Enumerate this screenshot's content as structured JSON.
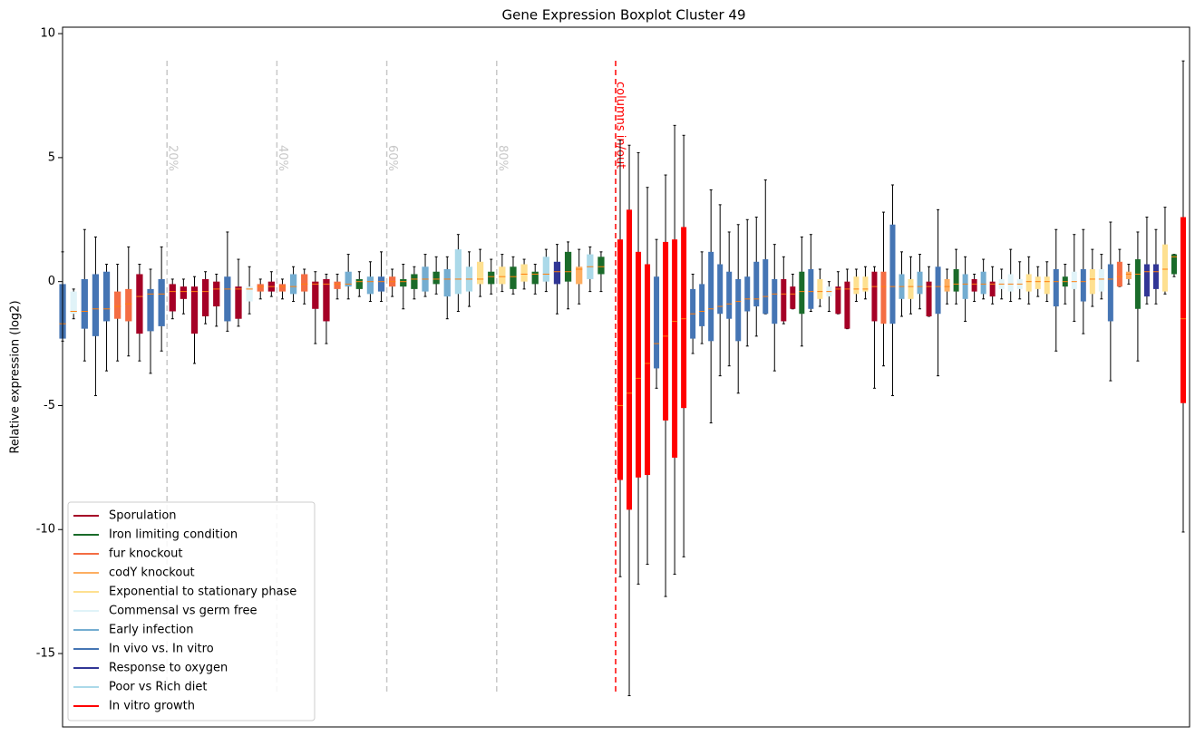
{
  "chart_data": {
    "type": "boxplot",
    "title": "Gene Expression Boxplot Cluster 49",
    "y_label": "Relative expression (log2)",
    "ylim": [
      -17.96,
      10.26
    ],
    "yticks": [
      10,
      5,
      0,
      -5,
      -10,
      -15
    ],
    "legend_position": "lower left",
    "median_color": "#ff7f0e",
    "guides": [
      {
        "value": 20,
        "label": "20%"
      },
      {
        "value": 40,
        "label": "40%"
      },
      {
        "value": 60,
        "label": "60%"
      },
      {
        "value": 80,
        "label": "80%"
      }
    ],
    "split_label": "columns in/out",
    "series": [
      {
        "name": "Sporulation",
        "color": "#a50026"
      },
      {
        "name": "Iron limiting condition",
        "color": "#1a6b2a"
      },
      {
        "name": "fur knockout",
        "color": "#f46d43"
      },
      {
        "name": "codY knockout",
        "color": "#fdae61"
      },
      {
        "name": "Exponential to stationary phase",
        "color": "#fee090"
      },
      {
        "name": "Commensal vs germ free",
        "color": "#e0f3f8"
      },
      {
        "name": "Early infection",
        "color": "#74add1"
      },
      {
        "name": "In vivo vs. In vitro",
        "color": "#4575b4"
      },
      {
        "name": "Response to oxygen",
        "color": "#313695"
      },
      {
        "name": "Poor vs Rich diet",
        "color": "#abd9e9"
      },
      {
        "name": "In vitro growth",
        "color": "#ff0000"
      }
    ],
    "boxes_in": [
      {
        "stats": [
          -2.4,
          -2.3,
          -1.7,
          -0.1,
          1.2
        ],
        "color": "#4575b4"
      },
      {
        "stats": [
          -1.5,
          -1.3,
          -1.2,
          -0.4,
          -0.3
        ],
        "color": "#e0f3f8"
      },
      {
        "stats": [
          -3.2,
          -1.9,
          -1.2,
          0.1,
          2.1
        ],
        "color": "#4575b4"
      },
      {
        "stats": [
          -4.6,
          -2.2,
          -1.1,
          0.3,
          1.8
        ],
        "color": "#4575b4"
      },
      {
        "stats": [
          -3.6,
          -1.6,
          -1.1,
          0.4,
          0.7
        ],
        "color": "#4575b4"
      },
      {
        "stats": [
          -3.2,
          -1.5,
          -1.0,
          -0.4,
          0.7
        ],
        "color": "#f46d43"
      },
      {
        "stats": [
          -3.0,
          -1.6,
          -0.9,
          -0.3,
          1.4
        ],
        "color": "#f46d43"
      },
      {
        "stats": [
          -3.2,
          -2.1,
          -0.6,
          0.3,
          0.7
        ],
        "color": "#a50026"
      },
      {
        "stats": [
          -3.7,
          -2.0,
          -0.5,
          -0.3,
          0.5
        ],
        "color": "#4575b4"
      },
      {
        "stats": [
          -2.8,
          -1.8,
          -0.5,
          0.1,
          1.4
        ],
        "color": "#4575b4"
      },
      {
        "stats": [
          -1.5,
          -1.2,
          -0.4,
          -0.1,
          0.1
        ],
        "color": "#a50026"
      },
      {
        "stats": [
          -1.3,
          -0.7,
          -0.4,
          -0.2,
          0.1
        ],
        "color": "#a50026"
      },
      {
        "stats": [
          -3.3,
          -2.1,
          -0.4,
          -0.2,
          0.2
        ],
        "color": "#a50026"
      },
      {
        "stats": [
          -1.7,
          -1.4,
          -0.4,
          0.1,
          0.4
        ],
        "color": "#a50026"
      },
      {
        "stats": [
          -1.8,
          -1.0,
          -0.3,
          0.0,
          0.3
        ],
        "color": "#a50026"
      },
      {
        "stats": [
          -2.0,
          -1.6,
          -0.3,
          0.2,
          2.0
        ],
        "color": "#4575b4"
      },
      {
        "stats": [
          -1.8,
          -1.5,
          -0.3,
          -0.2,
          0.9
        ],
        "color": "#a50026"
      },
      {
        "stats": [
          -1.3,
          -0.8,
          -0.3,
          -0.2,
          0.6
        ],
        "color": "#e0f3f8"
      },
      {
        "stats": [
          -0.7,
          -0.4,
          -0.2,
          -0.1,
          0.1
        ],
        "color": "#f46d43"
      },
      {
        "stats": [
          -0.6,
          -0.4,
          -0.2,
          0.0,
          0.4
        ],
        "color": "#a50026"
      },
      {
        "stats": [
          -0.7,
          -0.4,
          -0.2,
          -0.1,
          0.1
        ],
        "color": "#f46d43"
      },
      {
        "stats": [
          -0.8,
          -0.5,
          -0.2,
          0.3,
          0.6
        ],
        "color": "#74add1"
      },
      {
        "stats": [
          -0.9,
          -0.4,
          -0.1,
          0.3,
          0.5
        ],
        "color": "#f46d43"
      },
      {
        "stats": [
          -2.5,
          -1.1,
          -0.1,
          0.0,
          0.4
        ],
        "color": "#a50026"
      },
      {
        "stats": [
          -2.5,
          -1.6,
          -0.1,
          0.1,
          0.3
        ],
        "color": "#a50026"
      },
      {
        "stats": [
          -0.7,
          -0.3,
          -0.1,
          0.0,
          0.3
        ],
        "color": "#f46d43"
      },
      {
        "stats": [
          -0.7,
          -0.2,
          -0.1,
          0.4,
          1.1
        ],
        "color": "#74add1"
      },
      {
        "stats": [
          -0.6,
          -0.3,
          0.0,
          0.1,
          0.4
        ],
        "color": "#1a6b2a"
      },
      {
        "stats": [
          -0.8,
          -0.5,
          0.0,
          0.2,
          0.8
        ],
        "color": "#74add1"
      },
      {
        "stats": [
          -0.8,
          -0.4,
          0.0,
          0.2,
          1.2
        ],
        "color": "#4575b4"
      },
      {
        "stats": [
          -0.6,
          -0.2,
          0.0,
          0.2,
          0.5
        ],
        "color": "#f46d43"
      },
      {
        "stats": [
          -1.1,
          -0.2,
          0.0,
          0.1,
          0.7
        ],
        "color": "#1a6b2a"
      },
      {
        "stats": [
          -0.7,
          -0.3,
          0.1,
          0.3,
          0.6
        ],
        "color": "#1a6b2a"
      },
      {
        "stats": [
          -0.6,
          -0.4,
          0.1,
          0.6,
          1.1
        ],
        "color": "#74add1"
      },
      {
        "stats": [
          -0.5,
          -0.1,
          0.1,
          0.4,
          1.0
        ],
        "color": "#1a6b2a"
      },
      {
        "stats": [
          -1.5,
          -0.6,
          0.1,
          0.5,
          1.0
        ],
        "color": "#74add1"
      },
      {
        "stats": [
          -1.2,
          -0.5,
          0.1,
          1.3,
          1.9
        ],
        "color": "#abd9e9"
      },
      {
        "stats": [
          -1.0,
          -0.4,
          0.1,
          0.6,
          1.2
        ],
        "color": "#abd9e9"
      },
      {
        "stats": [
          -0.6,
          -0.1,
          0.1,
          0.8,
          1.3
        ],
        "color": "#fee090"
      },
      {
        "stats": [
          -0.5,
          -0.1,
          0.2,
          0.4,
          0.9
        ],
        "color": "#1a6b2a"
      },
      {
        "stats": [
          -0.4,
          -0.1,
          0.2,
          0.6,
          1.1
        ],
        "color": "#fee090"
      },
      {
        "stats": [
          -0.5,
          -0.3,
          0.2,
          0.6,
          1.0
        ],
        "color": "#1a6b2a"
      },
      {
        "stats": [
          -0.3,
          0.0,
          0.3,
          0.7,
          0.9
        ],
        "color": "#fee090"
      },
      {
        "stats": [
          -0.5,
          -0.1,
          0.3,
          0.4,
          0.7
        ],
        "color": "#1a6b2a"
      },
      {
        "stats": [
          -0.4,
          0.0,
          0.3,
          1.0,
          1.3
        ],
        "color": "#abd9e9"
      },
      {
        "stats": [
          -1.3,
          -0.1,
          0.4,
          0.8,
          1.5
        ],
        "color": "#313695"
      },
      {
        "stats": [
          -1.1,
          0.0,
          0.4,
          1.2,
          1.6
        ],
        "color": "#1a6b2a"
      },
      {
        "stats": [
          -0.9,
          -0.1,
          0.5,
          0.6,
          1.3
        ],
        "color": "#fdae61"
      },
      {
        "stats": [
          -0.4,
          0.1,
          0.6,
          1.1,
          1.4
        ],
        "color": "#abd9e9"
      },
      {
        "stats": [
          -0.4,
          0.3,
          0.6,
          1.0,
          1.2
        ],
        "color": "#1a6b2a"
      }
    ],
    "boxes_out": [
      {
        "stats": [
          -11.9,
          -8.0,
          -5.0,
          1.7,
          5.7
        ],
        "color": "#ff0000"
      },
      {
        "stats": [
          -16.7,
          -9.2,
          -4.5,
          2.9,
          5.5
        ],
        "color": "#ff0000"
      },
      {
        "stats": [
          -12.2,
          -7.9,
          -3.9,
          1.2,
          5.2
        ],
        "color": "#ff0000"
      },
      {
        "stats": [
          -11.4,
          -7.8,
          -3.3,
          0.7,
          3.8
        ],
        "color": "#ff0000"
      },
      {
        "stats": [
          -4.3,
          -3.5,
          -2.5,
          0.2,
          1.7
        ],
        "color": "#4575b4"
      },
      {
        "stats": [
          -12.7,
          -5.6,
          -2.2,
          1.6,
          4.3
        ],
        "color": "#ff0000"
      },
      {
        "stats": [
          -11.8,
          -7.1,
          -1.6,
          1.7,
          6.3
        ],
        "color": "#ff0000"
      },
      {
        "stats": [
          -11.1,
          -5.1,
          -1.5,
          2.2,
          5.9
        ],
        "color": "#ff0000"
      },
      {
        "stats": [
          -2.9,
          -2.3,
          -1.3,
          -0.3,
          0.3
        ],
        "color": "#4575b4"
      },
      {
        "stats": [
          -2.5,
          -1.8,
          -1.2,
          -0.1,
          1.2
        ],
        "color": "#4575b4"
      },
      {
        "stats": [
          -5.7,
          -2.4,
          -1.1,
          1.2,
          3.7
        ],
        "color": "#4575b4"
      },
      {
        "stats": [
          -3.8,
          -1.3,
          -1.0,
          0.7,
          3.1
        ],
        "color": "#4575b4"
      },
      {
        "stats": [
          -3.4,
          -1.5,
          -0.9,
          0.4,
          2.0
        ],
        "color": "#4575b4"
      },
      {
        "stats": [
          -4.5,
          -2.4,
          -0.8,
          0.1,
          2.3
        ],
        "color": "#4575b4"
      },
      {
        "stats": [
          -2.6,
          -1.2,
          -0.7,
          0.2,
          2.5
        ],
        "color": "#4575b4"
      },
      {
        "stats": [
          -2.2,
          -1.0,
          -0.7,
          0.8,
          2.6
        ],
        "color": "#4575b4"
      },
      {
        "stats": [
          -1.3,
          -1.3,
          -0.6,
          0.9,
          4.1
        ],
        "color": "#4575b4"
      },
      {
        "stats": [
          -3.6,
          -1.7,
          -0.5,
          0.1,
          1.5
        ],
        "color": "#4575b4"
      },
      {
        "stats": [
          -1.7,
          -1.6,
          -0.5,
          0.1,
          1.0
        ],
        "color": "#a50026"
      },
      {
        "stats": [
          -1.1,
          -1.1,
          -0.5,
          -0.2,
          0.3
        ],
        "color": "#a50026"
      },
      {
        "stats": [
          -2.6,
          -1.3,
          -0.4,
          0.4,
          1.8
        ],
        "color": "#1a6b2a"
      },
      {
        "stats": [
          -1.2,
          -1.1,
          -0.4,
          0.5,
          1.9
        ],
        "color": "#4575b4"
      },
      {
        "stats": [
          -1.0,
          -0.7,
          -0.4,
          0.1,
          0.5
        ],
        "color": "#fee090"
      },
      {
        "stats": [
          -1.2,
          -0.6,
          -0.4,
          -0.2,
          0.0
        ],
        "color": "#e0f3f8"
      },
      {
        "stats": [
          -1.3,
          -1.3,
          -0.3,
          -0.2,
          0.4
        ],
        "color": "#a50026"
      },
      {
        "stats": [
          -1.9,
          -1.9,
          -0.3,
          0.0,
          0.5
        ],
        "color": "#a50026"
      },
      {
        "stats": [
          -0.8,
          -0.5,
          -0.3,
          0.2,
          0.5
        ],
        "color": "#fee090"
      },
      {
        "stats": [
          -0.7,
          -0.4,
          -0.3,
          0.2,
          0.6
        ],
        "color": "#fee090"
      },
      {
        "stats": [
          -4.3,
          -1.6,
          -0.2,
          0.4,
          0.6
        ],
        "color": "#a50026"
      },
      {
        "stats": [
          -3.4,
          -1.7,
          -0.2,
          0.4,
          2.8
        ],
        "color": "#f46d43"
      },
      {
        "stats": [
          -4.6,
          -1.7,
          -0.2,
          2.3,
          3.9
        ],
        "color": "#4575b4"
      },
      {
        "stats": [
          -1.4,
          -0.7,
          -0.2,
          0.3,
          1.2
        ],
        "color": "#74add1"
      },
      {
        "stats": [
          -1.3,
          -0.7,
          -0.2,
          0.1,
          1.0
        ],
        "color": "#fee090"
      },
      {
        "stats": [
          -1.1,
          -0.5,
          -0.2,
          0.4,
          1.1
        ],
        "color": "#74add1"
      },
      {
        "stats": [
          -1.4,
          -1.4,
          -0.2,
          0.0,
          0.6
        ],
        "color": "#a50026"
      },
      {
        "stats": [
          -3.8,
          -1.3,
          -0.2,
          0.6,
          2.9
        ],
        "color": "#4575b4"
      },
      {
        "stats": [
          -0.9,
          -0.4,
          -0.2,
          0.1,
          0.5
        ],
        "color": "#fdae61"
      },
      {
        "stats": [
          -0.9,
          -0.4,
          -0.1,
          0.5,
          1.3
        ],
        "color": "#1a6b2a"
      },
      {
        "stats": [
          -1.6,
          -0.7,
          -0.1,
          0.3,
          1.0
        ],
        "color": "#74add1"
      },
      {
        "stats": [
          -0.8,
          -0.4,
          -0.1,
          0.1,
          0.3
        ],
        "color": "#a50026"
      },
      {
        "stats": [
          -0.7,
          -0.5,
          -0.1,
          0.4,
          0.9
        ],
        "color": "#74add1"
      },
      {
        "stats": [
          -0.9,
          -0.6,
          -0.1,
          0.0,
          0.6
        ],
        "color": "#a50026"
      },
      {
        "stats": [
          -0.7,
          -0.3,
          -0.1,
          0.1,
          0.5
        ],
        "color": "#e0f3f8"
      },
      {
        "stats": [
          -0.8,
          -0.4,
          -0.1,
          0.3,
          1.3
        ],
        "color": "#e0f3f8"
      },
      {
        "stats": [
          -0.7,
          -0.3,
          -0.1,
          0.1,
          0.8
        ],
        "color": "#e0f3f8"
      },
      {
        "stats": [
          -0.9,
          -0.4,
          0.0,
          0.3,
          1.0
        ],
        "color": "#fee090"
      },
      {
        "stats": [
          -0.6,
          -0.3,
          0.0,
          0.2,
          0.6
        ],
        "color": "#fee090"
      },
      {
        "stats": [
          -0.8,
          -0.5,
          0.0,
          0.2,
          0.8
        ],
        "color": "#fee090"
      },
      {
        "stats": [
          -2.8,
          -1.0,
          0.0,
          0.5,
          2.1
        ],
        "color": "#4575b4"
      },
      {
        "stats": [
          -0.9,
          -0.2,
          0.0,
          0.2,
          0.7
        ],
        "color": "#1a6b2a"
      },
      {
        "stats": [
          -1.6,
          -0.3,
          0.0,
          0.4,
          1.9
        ],
        "color": "#e0f3f8"
      },
      {
        "stats": [
          -2.1,
          -0.8,
          0.0,
          0.5,
          2.1
        ],
        "color": "#4575b4"
      },
      {
        "stats": [
          -1.0,
          -0.5,
          0.1,
          0.5,
          1.3
        ],
        "color": "#fee090"
      },
      {
        "stats": [
          -0.7,
          -0.4,
          0.1,
          0.5,
          1.1
        ],
        "color": "#e0f3f8"
      },
      {
        "stats": [
          -4.0,
          -1.6,
          0.1,
          0.7,
          2.4
        ],
        "color": "#4575b4"
      },
      {
        "stats": [
          -0.2,
          -0.2,
          0.2,
          0.8,
          1.3
        ],
        "color": "#f46d43"
      },
      {
        "stats": [
          -0.1,
          0.1,
          0.3,
          0.4,
          0.7
        ],
        "color": "#fdae61"
      },
      {
        "stats": [
          -3.2,
          -1.1,
          0.3,
          0.9,
          2.0
        ],
        "color": "#1a6b2a"
      },
      {
        "stats": [
          -0.9,
          -0.6,
          0.4,
          0.7,
          2.6
        ],
        "color": "#313695"
      },
      {
        "stats": [
          -0.9,
          -0.3,
          0.4,
          0.7,
          2.1
        ],
        "color": "#313695"
      },
      {
        "stats": [
          -0.5,
          -0.4,
          0.5,
          1.5,
          3.0
        ],
        "color": "#fee090"
      },
      {
        "stats": [
          0.2,
          0.3,
          1.0,
          1.1,
          1.1
        ],
        "color": "#1a6b2a"
      },
      {
        "stats": [
          -10.1,
          -4.9,
          -1.5,
          2.6,
          8.9
        ],
        "color": "#ff0000"
      }
    ]
  }
}
